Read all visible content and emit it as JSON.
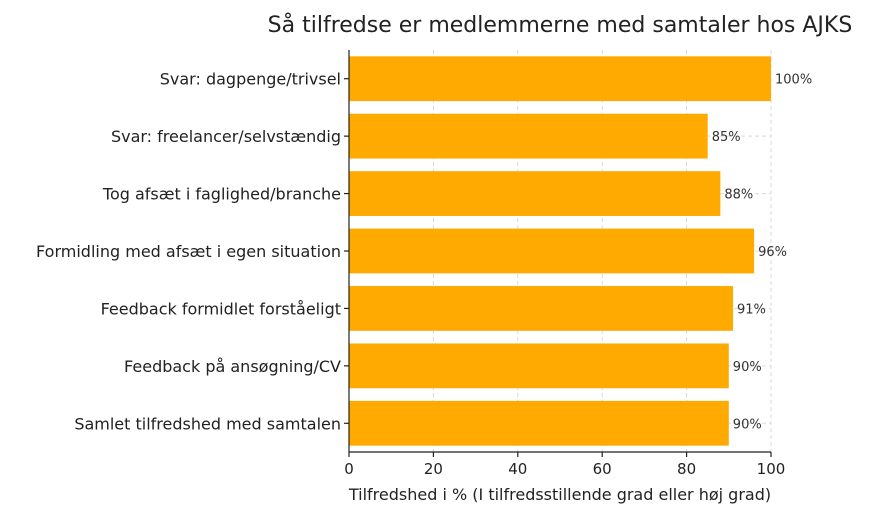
{
  "chart_data": {
    "type": "bar",
    "orientation": "horizontal",
    "title": "Så tilfredse er medlemmerne med samtaler hos AJKS",
    "xlabel": "Tilfredshed i % (I tilfredsstillende grad eller høj grad)",
    "ylabel": "",
    "xlim": [
      0,
      100
    ],
    "xticks": [
      0,
      20,
      40,
      60,
      80,
      100
    ],
    "grid": true,
    "bar_color": "#FFAA00",
    "categories": [
      "Svar: dagpenge/trivsel",
      "Svar: freelancer/selvstændig",
      "Tog afsæt i faglighed/branche",
      "Formidling med afsæt i egen situation",
      "Feedback formidlet forståeligt",
      "Feedback på ansøgning/CV",
      "Samlet tilfredshed med samtalen"
    ],
    "values": [
      100,
      85,
      88,
      96,
      91,
      90,
      90
    ],
    "data_labels": [
      "100%",
      "85%",
      "88%",
      "96%",
      "91%",
      "90%",
      "90%"
    ]
  }
}
